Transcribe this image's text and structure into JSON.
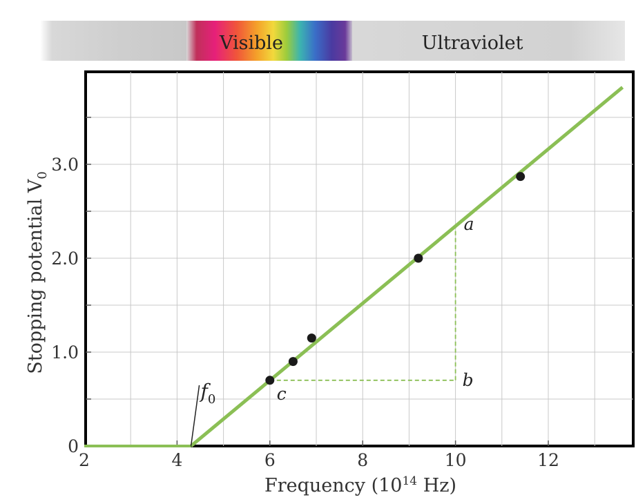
{
  "spectrum_band": {
    "visible_label": "Visible",
    "ultraviolet_label": "Ultraviolet"
  },
  "chart_data": {
    "type": "scatter",
    "xlabel_text": "Frequency (10",
    "xlabel_sup": "14",
    "xlabel_unit": " Hz)",
    "ylabel_text": "Stopping potential V",
    "ylabel_sub": "0",
    "xlim": [
      2,
      13.8
    ],
    "ylim": [
      0,
      3.95
    ],
    "x_ticks": [
      2,
      4,
      6,
      8,
      10,
      12
    ],
    "x_tick_labels": [
      "2",
      "4",
      "6",
      "8",
      "10",
      "12"
    ],
    "y_ticks": [
      0,
      1.0,
      2.0,
      3.0
    ],
    "y_tick_labels": [
      "0",
      "1.0",
      "2.0",
      "3.0"
    ],
    "grid": true,
    "points": [
      {
        "x": 6.0,
        "y": 0.7
      },
      {
        "x": 6.5,
        "y": 0.9
      },
      {
        "x": 6.9,
        "y": 1.15
      },
      {
        "x": 9.2,
        "y": 2.0
      },
      {
        "x": 11.4,
        "y": 2.87
      }
    ],
    "fit_line": {
      "x0": 4.3,
      "y0": 0.0,
      "x1": 13.6,
      "y1": 3.82
    },
    "zero_line": {
      "x0": 2.0,
      "x1": 4.3,
      "y": 0.0
    },
    "threshold": {
      "x": 4.3,
      "label": "f",
      "label_sub": "0"
    },
    "slope_triangle": {
      "a": {
        "x": 10.0,
        "y": 2.36,
        "label": "a"
      },
      "b": {
        "x": 10.0,
        "y": 0.7,
        "label": "b"
      },
      "c": {
        "x": 6.0,
        "y": 0.7,
        "label": "c"
      }
    },
    "colors": {
      "fit_line": "#8bbf55",
      "grid": "#c8c8c8",
      "frame": "#000000",
      "point": "#1a1a1a",
      "text": "#333333"
    }
  }
}
